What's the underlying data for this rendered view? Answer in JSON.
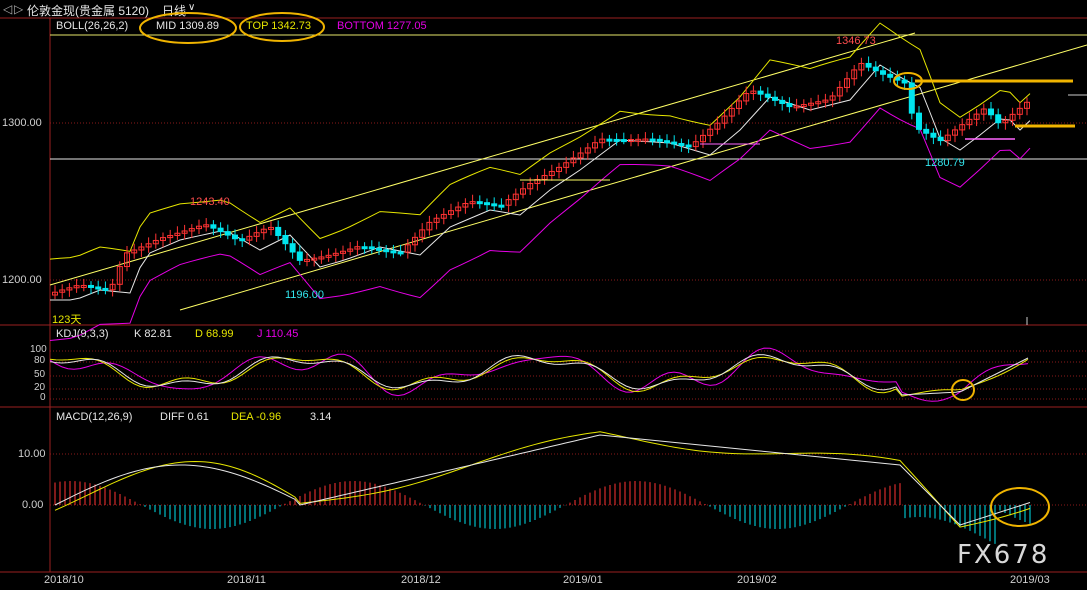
{
  "header": {
    "nav_back": "◁",
    "nav_fwd": "▷",
    "instrument": "伦敦金现(贵金属 5120)",
    "period": "日线",
    "period_arrow": "∨"
  },
  "main_panel": {
    "indicator": "BOLL(26,26,2)",
    "mid": "MID 1309.89",
    "top": "TOP 1342.73",
    "bottom": "BOTTOM 1277.05",
    "y_ticks": [
      "1300.00",
      "1200.00"
    ],
    "annotations": {
      "high1": "1243.40",
      "low1": "1196.00",
      "high2": "1346.73",
      "low2": "1280.79",
      "days": "123天"
    },
    "colors": {
      "up": "#ff3333",
      "down": "#00e5ee",
      "mid": "#e6e6e6",
      "top": "#e6e600",
      "bottom": "#e600e6",
      "trend": "#ffff66",
      "mark": "#f0b400"
    }
  },
  "kdj_panel": {
    "indicator": "KDJ(9,3,3)",
    "k": "K 82.81",
    "d": "D 68.99",
    "j": "J 110.45",
    "y_ticks": [
      "100",
      "80",
      "50",
      "20",
      "0"
    ]
  },
  "macd_panel": {
    "indicator": "MACD(12,26,9)",
    "diff": "DIFF 0.61",
    "dea": "DEA -0.96",
    "macd": "3.14",
    "y_ticks": [
      "10.00",
      "0.00"
    ]
  },
  "x_axis": [
    "2018/10",
    "2018/11",
    "2018/12",
    "2019/01",
    "2019/02",
    "2019/03"
  ],
  "watermark": "FX678"
}
